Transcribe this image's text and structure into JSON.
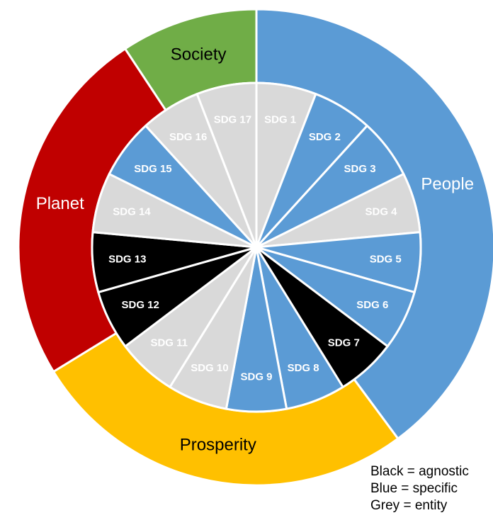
{
  "colors": {
    "blue": "#5b9bd5",
    "grey": "#d9d9d9",
    "black": "#000000",
    "green": "#70ad47",
    "red": "#c00000",
    "yellow": "#ffc000",
    "white": "#ffffff"
  },
  "chart_data": {
    "type": "sunburst",
    "outer_ring": [
      {
        "label": "Society",
        "start_deg": -33.5,
        "end_deg": 0,
        "color": "green"
      },
      {
        "label": "People",
        "start_deg": 0,
        "end_deg": 143.5,
        "color": "blue"
      },
      {
        "label": "Prosperity",
        "start_deg": 143.5,
        "end_deg": 238.5,
        "color": "yellow"
      },
      {
        "label": "Planet",
        "start_deg": 238.5,
        "end_deg": 326.5,
        "color": "red"
      }
    ],
    "inner_ring": [
      {
        "label": "SDG 1",
        "category": "grey"
      },
      {
        "label": "SDG 2",
        "category": "blue"
      },
      {
        "label": "SDG 3",
        "category": "blue"
      },
      {
        "label": "SDG 4",
        "category": "grey"
      },
      {
        "label": "SDG 5",
        "category": "blue"
      },
      {
        "label": "SDG 6",
        "category": "blue"
      },
      {
        "label": "SDG 7",
        "category": "black"
      },
      {
        "label": "SDG 8",
        "category": "blue"
      },
      {
        "label": "SDG 9",
        "category": "blue"
      },
      {
        "label": "SDG 10",
        "category": "grey"
      },
      {
        "label": "SDG 11",
        "category": "grey"
      },
      {
        "label": "SDG 12",
        "category": "black"
      },
      {
        "label": "SDG 13",
        "category": "black"
      },
      {
        "label": "SDG 14",
        "category": "grey"
      },
      {
        "label": "SDG 15",
        "category": "blue"
      },
      {
        "label": "SDG 16",
        "category": "grey"
      },
      {
        "label": "SDG 17",
        "category": "grey"
      }
    ]
  },
  "legend": {
    "black": "Black = agnostic",
    "blue": "Blue = specific",
    "grey": "Grey = entity"
  }
}
